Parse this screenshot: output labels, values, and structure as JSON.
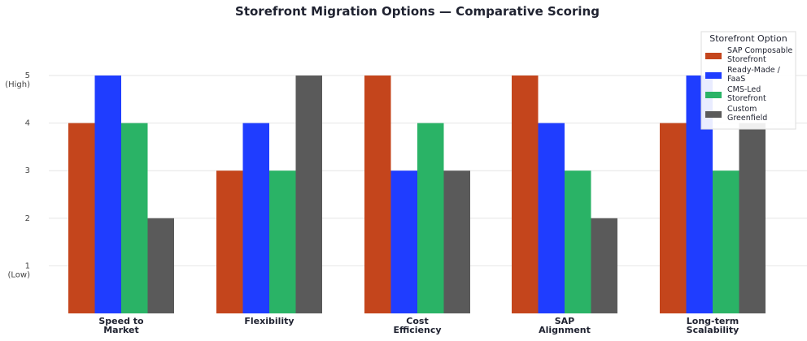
{
  "chart_data": {
    "type": "bar",
    "title": "Storefront Migration Options — Comparative Scoring",
    "xlabel": "",
    "ylabel": "",
    "ylim": [
      0,
      5.15
    ],
    "grid": true,
    "categories": [
      [
        "Speed to",
        "Market"
      ],
      [
        "Flexibility"
      ],
      [
        "Cost",
        "Efficiency"
      ],
      [
        "SAP",
        "Alignment"
      ],
      [
        "Long-term",
        "Scalability"
      ]
    ],
    "yticks": [
      {
        "value": 1,
        "lines": [
          "1",
          "(Low)"
        ]
      },
      {
        "value": 2,
        "lines": [
          "2"
        ]
      },
      {
        "value": 3,
        "lines": [
          "3"
        ]
      },
      {
        "value": 4,
        "lines": [
          "4"
        ]
      },
      {
        "value": 5,
        "lines": [
          "5",
          "(High)"
        ]
      }
    ],
    "legend": {
      "title": "Storefront Option",
      "position": "top-right"
    },
    "series": [
      {
        "name": [
          "SAP Composable",
          "Storefront"
        ],
        "color": "#c4451c",
        "values": [
          4,
          3,
          5,
          5,
          4
        ]
      },
      {
        "name": [
          "Ready-Made /",
          "FaaS"
        ],
        "color": "#1f3dff",
        "values": [
          5,
          4,
          3,
          4,
          5
        ]
      },
      {
        "name": [
          "CMS-Led",
          "Storefront"
        ],
        "color": "#2ab366",
        "values": [
          4,
          3,
          4,
          3,
          3
        ]
      },
      {
        "name": [
          "Custom",
          "Greenfield"
        ],
        "color": "#5a5a5a",
        "values": [
          2,
          5,
          3,
          2,
          4
        ]
      }
    ]
  }
}
